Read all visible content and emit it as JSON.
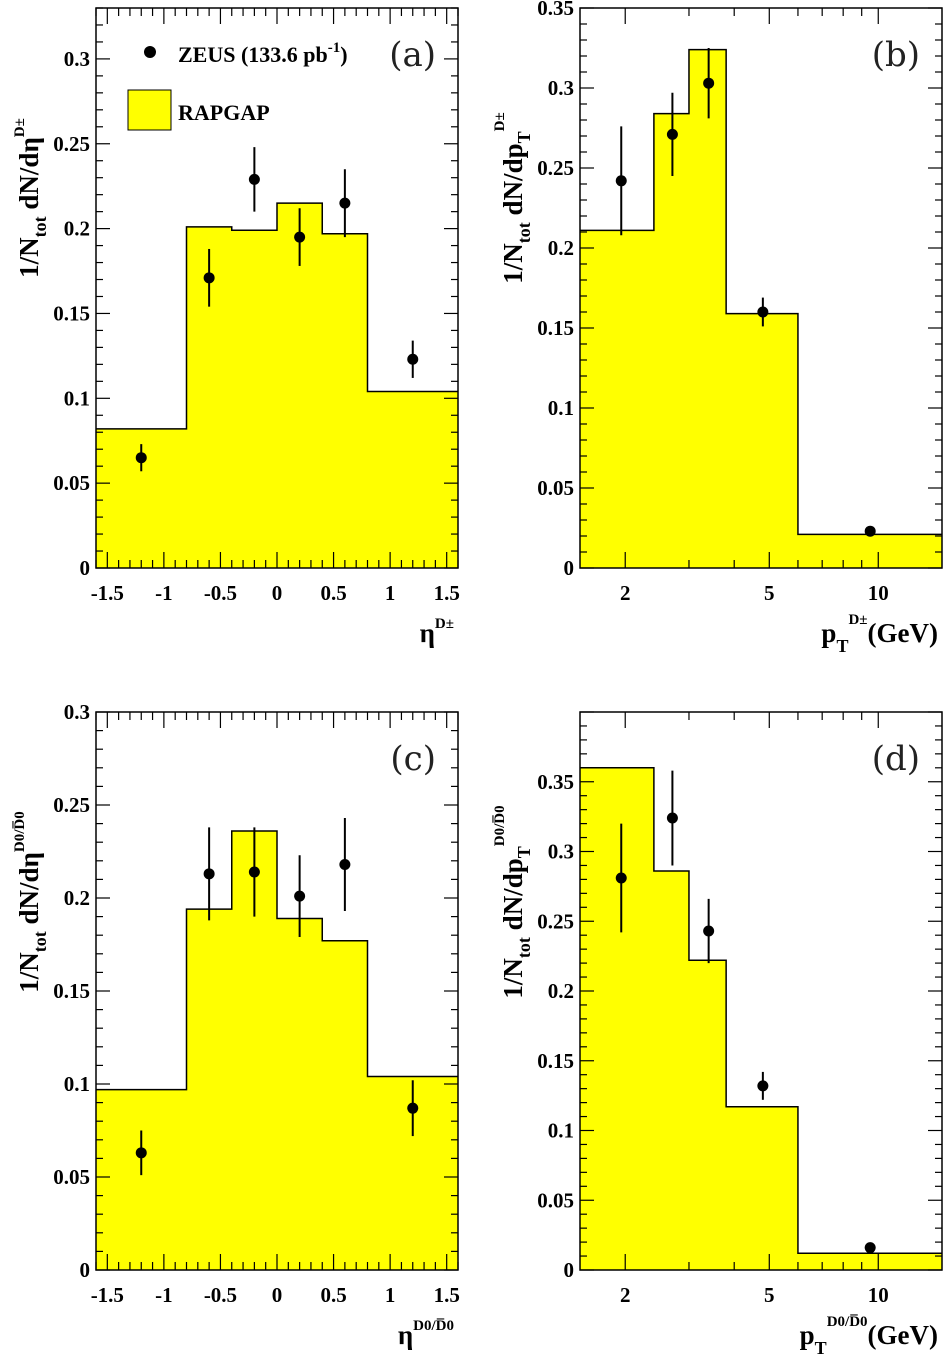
{
  "chart_data": [
    {
      "type": "histogram-with-points",
      "panel_label": "(a)",
      "xscale": "linear",
      "xlim": [
        -1.6,
        1.6
      ],
      "ylim": [
        0,
        0.33
      ],
      "xticks": [
        -1.5,
        -1,
        -0.5,
        0,
        0.5,
        1,
        1.5
      ],
      "xtick_labels": [
        "-1.5",
        "-1",
        "-0.5",
        "0",
        "0.5",
        "1",
        "1.5"
      ],
      "yticks": [
        0,
        0.05,
        0.1,
        0.15,
        0.2,
        0.25,
        0.3
      ],
      "ytick_labels": [
        "0",
        "0.05",
        "0.1",
        "0.15",
        "0.2",
        "0.25",
        "0.3"
      ],
      "ylabel": {
        "main": "1/N",
        "sub": "tot",
        "rest": " dN/dη",
        "sup": "D±"
      },
      "xlabel": {
        "main": "η",
        "sup": "D±"
      },
      "legend": {
        "data_label": "ZEUS (133.6 pb",
        "data_label_sup": "-1",
        "data_label_end": ")",
        "mc_label": "RAPGAP"
      },
      "histogram": {
        "name": "RAPGAP",
        "edges": [
          -1.6,
          -0.8,
          -0.4,
          0,
          0.4,
          0.8,
          1.6
        ],
        "values": [
          0.082,
          0.201,
          0.199,
          0.215,
          0.197,
          0.104
        ]
      },
      "points": {
        "name": "ZEUS (133.6 pb-1)",
        "x": [
          -1.2,
          -0.6,
          -0.2,
          0.2,
          0.6,
          1.2
        ],
        "y": [
          0.065,
          0.171,
          0.229,
          0.195,
          0.215,
          0.123
        ],
        "err": [
          0.008,
          0.017,
          0.019,
          0.017,
          0.02,
          0.011
        ]
      }
    },
    {
      "type": "histogram-with-points",
      "panel_label": "(b)",
      "xscale": "log",
      "xlim": [
        1.5,
        15
      ],
      "ylim": [
        0,
        0.35
      ],
      "xticks": [
        2,
        5,
        10
      ],
      "xtick_labels": [
        "2",
        "5",
        "10"
      ],
      "yticks": [
        0,
        0.05,
        0.1,
        0.15,
        0.2,
        0.25,
        0.3,
        0.35
      ],
      "ytick_labels": [
        "0",
        "0.05",
        "0.1",
        "0.15",
        "0.2",
        "0.25",
        "0.3",
        "0.35"
      ],
      "ylabel": {
        "main": "1/N",
        "sub": "tot",
        "rest": " dN/dp",
        "sub2": "T",
        "sup": "D±"
      },
      "xlabel": {
        "main": "p",
        "sub": "T",
        "sup": "D±",
        "rest": "(GeV)"
      },
      "histogram": {
        "name": "RAPGAP",
        "edges": [
          1.5,
          2.4,
          3.0,
          3.8,
          6.0,
          15.0
        ],
        "values": [
          0.211,
          0.284,
          0.324,
          0.159,
          0.021
        ]
      },
      "points": {
        "name": "ZEUS (133.6 pb-1)",
        "x": [
          1.95,
          2.7,
          3.4,
          4.8,
          9.5
        ],
        "y": [
          0.242,
          0.271,
          0.303,
          0.16,
          0.023
        ],
        "err": [
          0.034,
          0.026,
          0.022,
          0.009,
          0.002
        ]
      }
    },
    {
      "type": "histogram-with-points",
      "panel_label": "(c)",
      "xscale": "linear",
      "xlim": [
        -1.6,
        1.6
      ],
      "ylim": [
        0,
        0.3
      ],
      "xticks": [
        -1.5,
        -1,
        -0.5,
        0,
        0.5,
        1,
        1.5
      ],
      "xtick_labels": [
        "-1.5",
        "-1",
        "-0.5",
        "0",
        "0.5",
        "1",
        "1.5"
      ],
      "yticks": [
        0,
        0.05,
        0.1,
        0.15,
        0.2,
        0.25,
        0.3
      ],
      "ytick_labels": [
        "0",
        "0.05",
        "0.1",
        "0.15",
        "0.2",
        "0.25",
        "0.3"
      ],
      "ylabel": {
        "main": "1/N",
        "sub": "tot",
        "rest": " dN/dη",
        "sup": "D0/D̅0"
      },
      "xlabel": {
        "main": "η",
        "sup": "D0/D̅0"
      },
      "histogram": {
        "name": "RAPGAP",
        "edges": [
          -1.6,
          -0.8,
          -0.4,
          0,
          0.4,
          0.8,
          1.6
        ],
        "values": [
          0.097,
          0.194,
          0.236,
          0.189,
          0.177,
          0.104
        ]
      },
      "points": {
        "name": "ZEUS (133.6 pb-1)",
        "x": [
          -1.2,
          -0.6,
          -0.2,
          0.2,
          0.6,
          1.2
        ],
        "y": [
          0.063,
          0.213,
          0.214,
          0.201,
          0.218,
          0.087
        ],
        "err": [
          0.012,
          0.025,
          0.024,
          0.022,
          0.025,
          0.015
        ]
      }
    },
    {
      "type": "histogram-with-points",
      "panel_label": "(d)",
      "xscale": "log",
      "xlim": [
        1.5,
        15
      ],
      "ylim": [
        0,
        0.4
      ],
      "xticks": [
        2,
        5,
        10
      ],
      "xtick_labels": [
        "2",
        "5",
        "10"
      ],
      "yticks": [
        0,
        0.05,
        0.1,
        0.15,
        0.2,
        0.25,
        0.3,
        0.35
      ],
      "ytick_labels": [
        "0",
        "0.05",
        "0.1",
        "0.15",
        "0.2",
        "0.25",
        "0.3",
        "0.35"
      ],
      "ylabel": {
        "main": "1/N",
        "sub": "tot",
        "rest": " dN/dp",
        "sub2": "T",
        "sup": "D0/D̅0"
      },
      "xlabel": {
        "main": "p",
        "sub": "T",
        "sup": "D0/D̅0",
        "rest": "(GeV)"
      },
      "histogram": {
        "name": "RAPGAP",
        "edges": [
          1.5,
          2.4,
          3.0,
          3.8,
          6.0,
          15.0
        ],
        "values": [
          0.36,
          0.286,
          0.222,
          0.117,
          0.012
        ]
      },
      "points": {
        "name": "ZEUS (133.6 pb-1)",
        "x": [
          1.95,
          2.7,
          3.4,
          4.8,
          9.5
        ],
        "y": [
          0.281,
          0.324,
          0.243,
          0.132,
          0.016
        ],
        "err": [
          0.039,
          0.034,
          0.023,
          0.01,
          0.002
        ]
      }
    }
  ],
  "colors": {
    "histogram_fill": "#ffff00",
    "histogram_line": "#000000",
    "points": "#000000",
    "frame": "#000000"
  }
}
